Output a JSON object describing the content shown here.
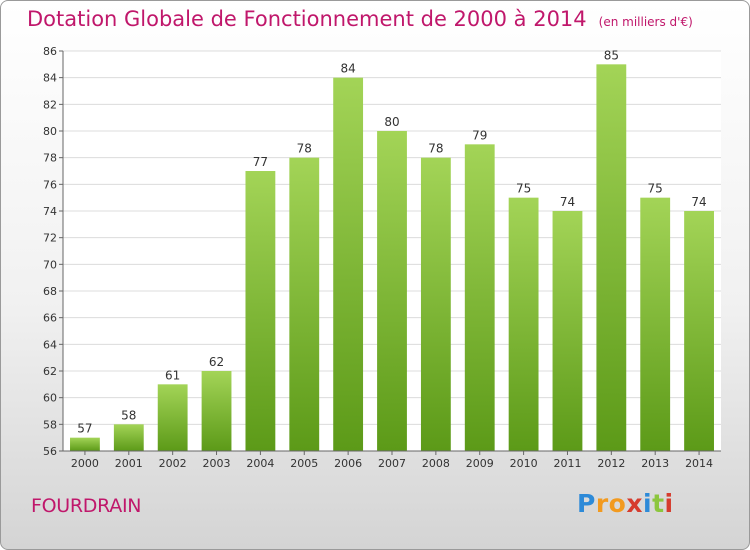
{
  "title": "Dotation Globale de Fonctionnement de 2000 à 2014",
  "unit": "(en milliers d'€)",
  "commune": "FOURDRAIN",
  "logo": {
    "letters": [
      "P",
      "r",
      "o",
      "x",
      "i",
      "t",
      "i"
    ],
    "colors": [
      "#2d8ad8",
      "#f29a1f",
      "#f29a1f",
      "#d63c2e",
      "#2d8ad8",
      "#8cc63e",
      "#d63c2e"
    ]
  },
  "colors": {
    "accent": "#c0176b",
    "bar_light": "#9fd052",
    "bar_dark": "#5c9a18",
    "grid": "#d9d9d9",
    "text": "#333333"
  },
  "chart_data": {
    "type": "bar",
    "title": "Dotation Globale de Fonctionnement de 2000 à 2014",
    "subtitle": "(en milliers d'€)",
    "categories": [
      "2000",
      "2001",
      "2002",
      "2003",
      "2004",
      "2005",
      "2006",
      "2007",
      "2008",
      "2009",
      "2010",
      "2011",
      "2012",
      "2013",
      "2014"
    ],
    "values": [
      57,
      58,
      61,
      62,
      77,
      78,
      84,
      80,
      78,
      79,
      75,
      74,
      85,
      75,
      74
    ],
    "ylim": [
      56,
      86
    ],
    "yticks": [
      56,
      58,
      60,
      62,
      64,
      66,
      68,
      70,
      72,
      74,
      76,
      78,
      80,
      82,
      84,
      86
    ],
    "grid": true,
    "data_labels": true
  }
}
